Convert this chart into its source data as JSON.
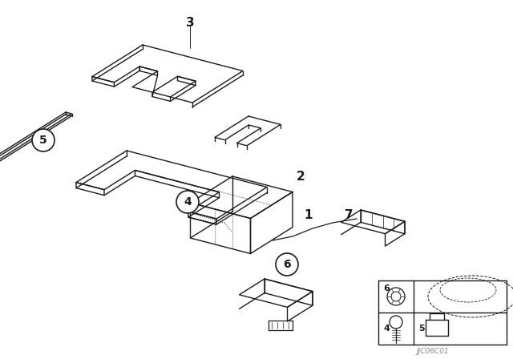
{
  "bg_color": "#ffffff",
  "line_color": "#1a1a1a",
  "watermark": "JJC06C01",
  "fig_w": 6.4,
  "fig_h": 4.48,
  "dpi": 100
}
